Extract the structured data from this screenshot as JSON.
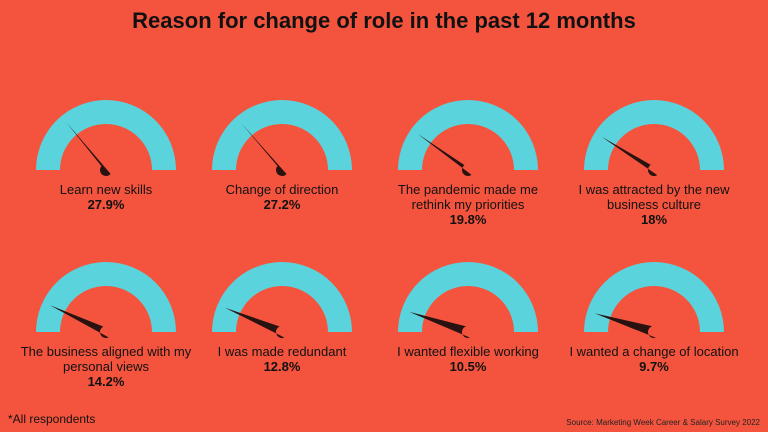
{
  "chart_data": {
    "type": "gauge",
    "title": "Reason for change of role in the past 12 months",
    "items": [
      {
        "label": "Learn new skills",
        "value_label": "27.9%",
        "value": 27.9
      },
      {
        "label": "Change of direction",
        "value_label": "27.2%",
        "value": 27.2
      },
      {
        "label": "The pandemic made me rethink my priorities",
        "value_label": "19.8%",
        "value": 19.8
      },
      {
        "label": "I was attracted by the new business culture",
        "value_label": "18%",
        "value": 18
      },
      {
        "label": "The business aligned with my personal views",
        "value_label": "14.2%",
        "value": 14.2
      },
      {
        "label": "I was made redundant",
        "value_label": "12.8%",
        "value": 12.8
      },
      {
        "label": "I wanted flexible working",
        "value_label": "10.5%",
        "value": 10.5
      },
      {
        "label": "I wanted a change of location",
        "value_label": "9.7%",
        "value": 9.7
      }
    ],
    "footnote": "*All respondents",
    "source": "Source: Marketing Week Career & Salary Survey 2022"
  },
  "colors": {
    "background": "#F4543E",
    "gauge_arc": "#5BD3DC",
    "needle": "#2A1210"
  }
}
